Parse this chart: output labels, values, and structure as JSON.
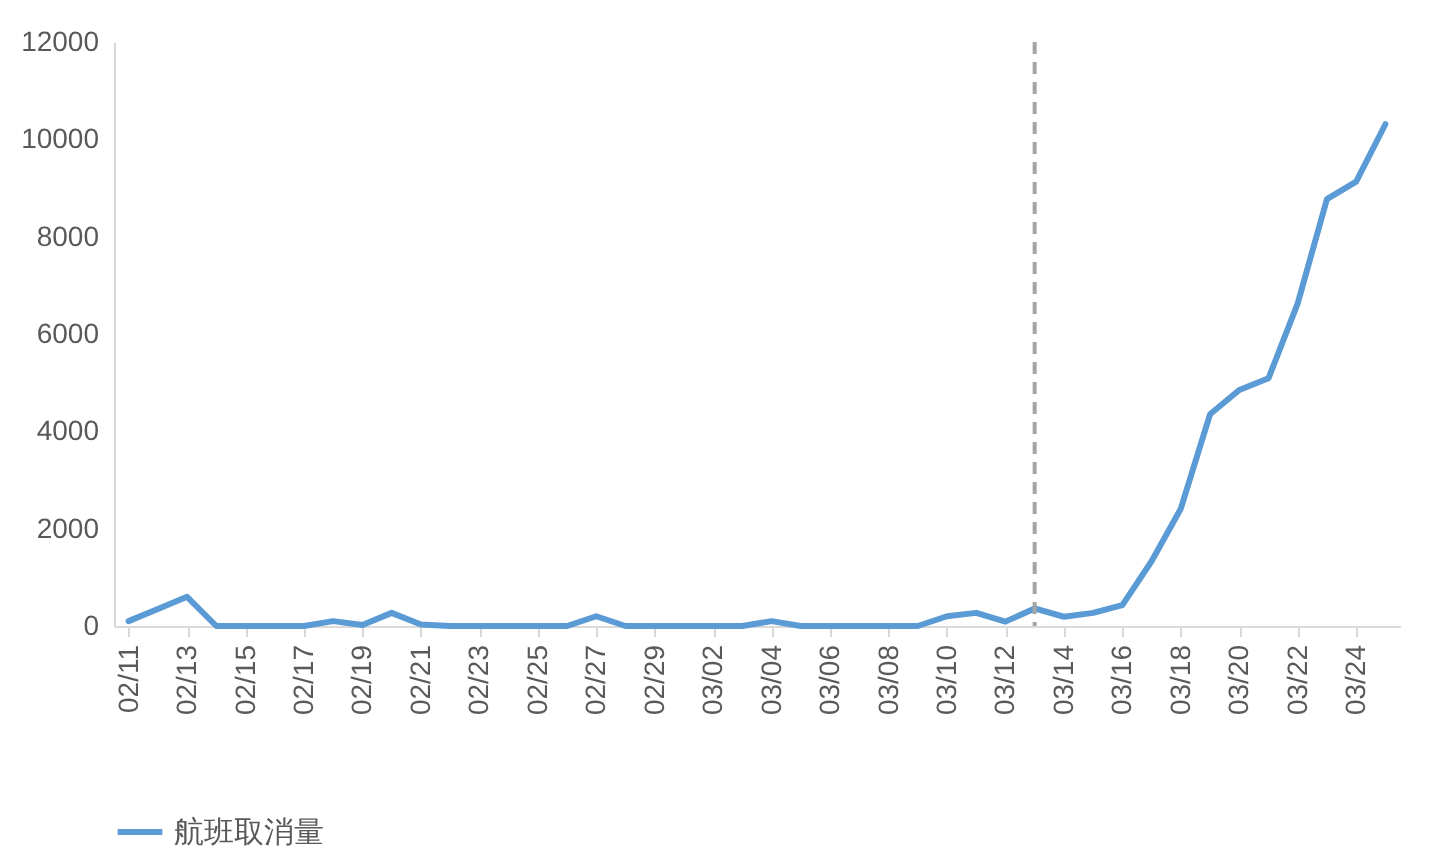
{
  "chart_data": {
    "type": "line",
    "x": [
      "--02-11",
      "--02-12",
      "--02-13",
      "--02-14",
      "--02-15",
      "--02-16",
      "--02-17",
      "--02-18",
      "--02-19",
      "--02-20",
      "--02-21",
      "--02-22",
      "--02-23",
      "--02-24",
      "--02-25",
      "--02-26",
      "--02-27",
      "--02-28",
      "--02-29",
      "--03-01",
      "--03-02",
      "--03-03",
      "--03-04",
      "--03-05",
      "--03-06",
      "--03-07",
      "--03-08",
      "--03-09",
      "--03-10",
      "--03-11",
      "--03-12",
      "--03-13",
      "--03-14",
      "--03-15",
      "--03-16",
      "--03-17",
      "--03-18",
      "--03-19",
      "--03-20",
      "--03-21",
      "--03-22",
      "--03-23",
      "--03-24",
      "--03-25"
    ],
    "series": [
      {
        "name": "航班取消量",
        "color": "#5b9bd5",
        "values": [
          100,
          350,
          600,
          0,
          0,
          0,
          0,
          100,
          20,
          270,
          30,
          0,
          0,
          0,
          0,
          0,
          200,
          0,
          0,
          0,
          0,
          0,
          100,
          0,
          0,
          0,
          0,
          0,
          200,
          270,
          90,
          360,
          190,
          270,
          430,
          1330,
          2410,
          4350,
          4850,
          5090,
          6630,
          8770,
          9130,
          10310
        ]
      }
    ],
    "xlim": [
      "--02-10T12:00",
      "--03-25T12:00"
    ],
    "xticks": [
      {
        "value": "--02-11",
        "label": "02/11"
      },
      {
        "value": "--02-13",
        "label": "02/13"
      },
      {
        "value": "--02-15",
        "label": "02/15"
      },
      {
        "value": "--02-17",
        "label": "02/17"
      },
      {
        "value": "--02-19",
        "label": "02/19"
      },
      {
        "value": "--02-21",
        "label": "02/21"
      },
      {
        "value": "--02-23",
        "label": "02/23"
      },
      {
        "value": "--02-25",
        "label": "02/25"
      },
      {
        "value": "--02-27",
        "label": "02/27"
      },
      {
        "value": "--02-29",
        "label": "02/29"
      },
      {
        "value": "--03-02",
        "label": "03/02"
      },
      {
        "value": "--03-04",
        "label": "03/04"
      },
      {
        "value": "--03-06",
        "label": "03/06"
      },
      {
        "value": "--03-08",
        "label": "03/08"
      },
      {
        "value": "--03-10",
        "label": "03/10"
      },
      {
        "value": "--03-12",
        "label": "03/12"
      },
      {
        "value": "--03-14",
        "label": "03/14"
      },
      {
        "value": "--03-16",
        "label": "03/16"
      },
      {
        "value": "--03-18",
        "label": "03/18"
      },
      {
        "value": "--03-20",
        "label": "03/20"
      },
      {
        "value": "--03-22",
        "label": "03/22"
      },
      {
        "value": "--03-24",
        "label": "03/24"
      }
    ],
    "ylim": [
      0,
      12000
    ],
    "yticks": [
      0,
      2000,
      4000,
      6000,
      8000,
      10000,
      12000
    ],
    "ref_lines": [
      {
        "axis": "x",
        "value": "--03-13",
        "color": "#a5a5a5",
        "line_style": "dashed"
      }
    ],
    "grid": false,
    "legend": "bottom",
    "line_style": "solid",
    "marker": "none"
  }
}
